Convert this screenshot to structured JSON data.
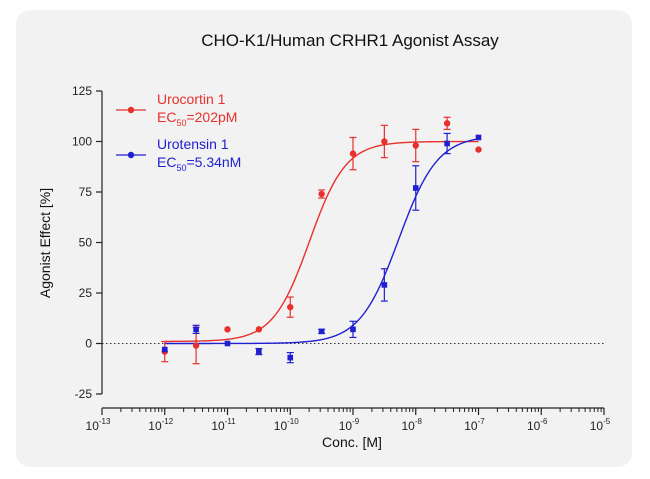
{
  "chart_data": {
    "type": "scatter",
    "title": "CHO-K1/Human CRHR1 Agonist Assay",
    "xlabel": "Conc. [M]",
    "ylabel": "Agonist Effect [%]",
    "x_scale": "log",
    "xlim": [
      1e-13,
      1e-05
    ],
    "ylim": [
      -25,
      125
    ],
    "yticks": [
      -25,
      0,
      25,
      50,
      75,
      100,
      125
    ],
    "xtick_exponents": [
      "-13",
      "-12",
      "-11",
      "-10",
      "-9",
      "-8",
      "-7",
      "-6",
      "-5"
    ],
    "xtick_base": "10",
    "reference_line": 0,
    "legend_position": "top-left",
    "grid": false,
    "series": [
      {
        "name": "Urocortin 1",
        "ec50_prefix": "EC",
        "ec50_sub": "50",
        "ec50_value": "=202pM",
        "color": "#e8302c",
        "ec50_M": 2.02e-10,
        "hill": 1.5,
        "bottom": 1,
        "top": 100,
        "points": [
          {
            "x": 1e-12,
            "y": -4,
            "err": 5
          },
          {
            "x": 3.16e-12,
            "y": -1,
            "err": 9
          },
          {
            "x": 1e-11,
            "y": 7,
            "err": 0
          },
          {
            "x": 3.16e-11,
            "y": 7,
            "err": 0
          },
          {
            "x": 1e-10,
            "y": 18,
            "err": 5
          },
          {
            "x": 3.16e-10,
            "y": 74,
            "err": 2
          },
          {
            "x": 1e-09,
            "y": 94,
            "err": 8
          },
          {
            "x": 3.16e-09,
            "y": 100,
            "err": 8
          },
          {
            "x": 1e-08,
            "y": 98,
            "err": 8
          },
          {
            "x": 3.16e-08,
            "y": 109,
            "err": 3
          },
          {
            "x": 1e-07,
            "y": 96,
            "err": 0
          }
        ]
      },
      {
        "name": "Urotensin 1",
        "ec50_prefix": "EC",
        "ec50_sub": "50",
        "ec50_value": "=5.34nM",
        "color": "#2020d0",
        "ec50_M": 5.34e-09,
        "hill": 1.4,
        "bottom": 0,
        "top": 103,
        "points": [
          {
            "x": 1e-12,
            "y": -3,
            "err": 0
          },
          {
            "x": 3.16e-12,
            "y": 7,
            "err": 2
          },
          {
            "x": 1e-11,
            "y": 0,
            "err": 0
          },
          {
            "x": 3.16e-11,
            "y": -4,
            "err": 1.5
          },
          {
            "x": 1e-10,
            "y": -7,
            "err": 2.5
          },
          {
            "x": 3.16e-10,
            "y": 6,
            "err": 1
          },
          {
            "x": 1e-09,
            "y": 7,
            "err": 4
          },
          {
            "x": 3.16e-09,
            "y": 29,
            "err": 8
          },
          {
            "x": 1e-08,
            "y": 77,
            "err": 11
          },
          {
            "x": 3.16e-08,
            "y": 99,
            "err": 5
          },
          {
            "x": 1e-07,
            "y": 102,
            "err": 0
          }
        ]
      }
    ]
  }
}
